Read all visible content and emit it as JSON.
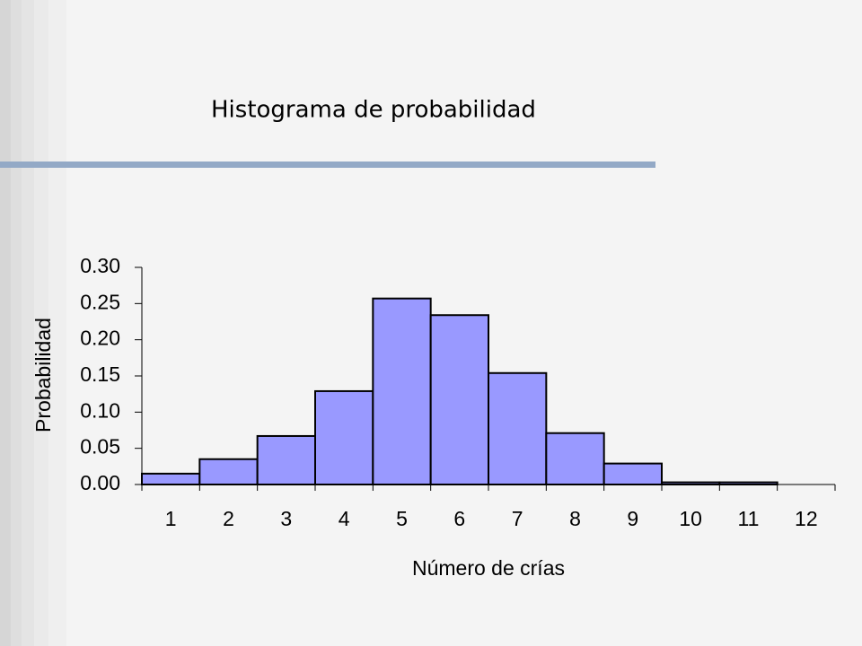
{
  "chart_data": {
    "type": "bar",
    "title": "Histograma de probabilidad",
    "x_label": "Número de crías",
    "y_label": "Probabilidad",
    "categories": [
      "1",
      "2",
      "3",
      "4",
      "5",
      "6",
      "7",
      "8",
      "9",
      "10",
      "11",
      "12"
    ],
    "values": [
      0.015,
      0.035,
      0.067,
      0.129,
      0.257,
      0.234,
      0.154,
      0.071,
      0.029,
      0.003,
      0.003,
      0
    ],
    "color": "#9999ff",
    "ylim": [
      0,
      0.3
    ],
    "yticks": [
      {
        "value": 0,
        "label": "0.00"
      },
      {
        "value": 0.05,
        "label": "0.05"
      },
      {
        "value": 0.1,
        "label": "0.10"
      },
      {
        "value": 0.15,
        "label": "0.15"
      },
      {
        "value": 0.2,
        "label": "0.20"
      },
      {
        "value": 0.25,
        "label": "0.25"
      },
      {
        "value": 0.3,
        "label": "0.30"
      }
    ],
    "grid": false
  }
}
